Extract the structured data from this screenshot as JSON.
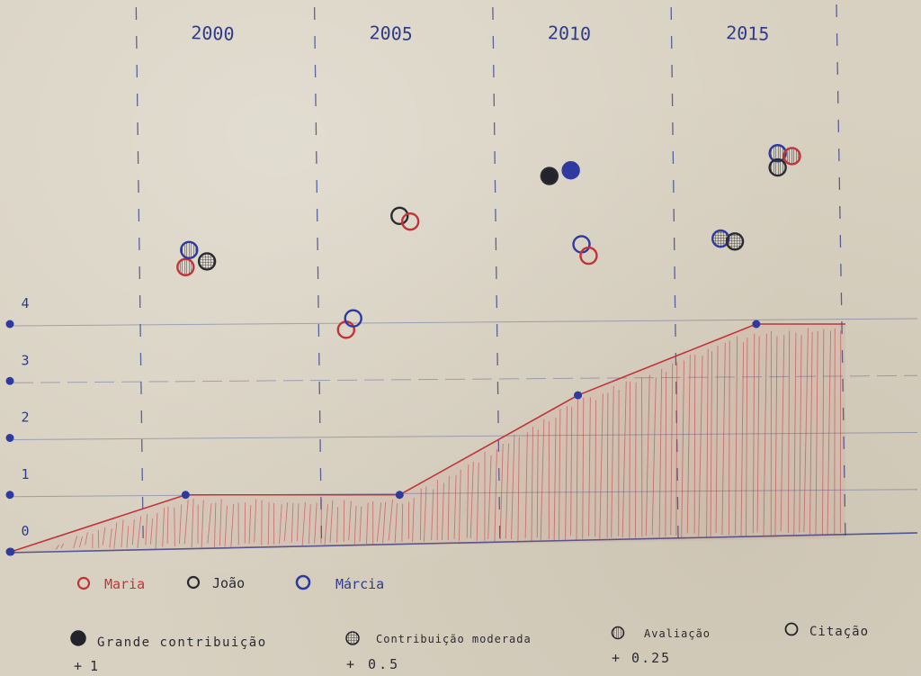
{
  "chart_data": {
    "type": "area",
    "x_ticks": [
      "2000",
      "2005",
      "2010",
      "2015"
    ],
    "y_ticks": [
      "0",
      "1",
      "2",
      "3",
      "4"
    ],
    "ylim": [
      0,
      4
    ],
    "grid": "vertical dashed lines at year ticks, horizontal faint lines at y ticks",
    "area_series": {
      "color": "#c0343a",
      "points": [
        {
          "x": 1995.1,
          "y": 0
        },
        {
          "x": 2000,
          "y": 1
        },
        {
          "x": 2006,
          "y": 1
        },
        {
          "x": 2011,
          "y": 2.75
        },
        {
          "x": 2016,
          "y": 4
        },
        {
          "x": 2018.5,
          "y": 4
        }
      ]
    },
    "contributions": [
      {
        "x": 2000.0,
        "y_level": 5.0,
        "person": "Maria",
        "type": "Avaliação"
      },
      {
        "x": 2000.1,
        "y_level": 5.3,
        "person": "Márcia",
        "type": "Avaliação"
      },
      {
        "x": 2000.6,
        "y_level": 5.1,
        "person": "João",
        "type": "Contribuição moderada"
      },
      {
        "x": 2004.5,
        "y_level": 3.9,
        "person": "Maria",
        "type": "Citação"
      },
      {
        "x": 2004.7,
        "y_level": 4.1,
        "person": "Márcia",
        "type": "Citação"
      },
      {
        "x": 2006.0,
        "y_level": 5.9,
        "person": "João",
        "type": "Citação"
      },
      {
        "x": 2006.3,
        "y_level": 5.8,
        "person": "Maria",
        "type": "Citação"
      },
      {
        "x": 2010.2,
        "y_level": 6.6,
        "person": "João",
        "type": "Grande contribuição"
      },
      {
        "x": 2010.8,
        "y_level": 6.7,
        "person": "Márcia",
        "type": "Grande contribuição"
      },
      {
        "x": 2011.1,
        "y_level": 5.4,
        "person": "Márcia",
        "type": "Citação"
      },
      {
        "x": 2011.3,
        "y_level": 5.2,
        "person": "Maria",
        "type": "Citação"
      },
      {
        "x": 2015.0,
        "y_level": 5.5,
        "person": "Márcia",
        "type": "Contribuição moderada"
      },
      {
        "x": 2015.4,
        "y_level": 5.45,
        "person": "João",
        "type": "Contribuição moderada"
      },
      {
        "x": 2016.6,
        "y_level": 7.0,
        "person": "Márcia",
        "type": "Avaliação"
      },
      {
        "x": 2017.0,
        "y_level": 6.95,
        "person": "Maria",
        "type": "Avaliação"
      },
      {
        "x": 2016.6,
        "y_level": 6.75,
        "person": "João",
        "type": "Avaliação"
      }
    ],
    "legend_people": [
      {
        "name": "Maria",
        "color": "#c0343a"
      },
      {
        "name": "João",
        "color": "#2a2a33"
      },
      {
        "name": "Márcia",
        "color": "#2f3aa0"
      }
    ],
    "legend_types": [
      {
        "name": "Grande contribuição",
        "value": "+ 1",
        "symbol": "filled"
      },
      {
        "name": "Contribuição moderada",
        "value": "+ 0.5",
        "symbol": "grid"
      },
      {
        "name": "Avaliação",
        "value": "+ 0.25",
        "symbol": "striped"
      },
      {
        "name": "Citação",
        "value": "",
        "symbol": "empty"
      }
    ]
  },
  "legend": {
    "maria": "Maria",
    "joao": "João",
    "marcia": "Márcia",
    "grande": "Grande contribuição",
    "grande_value": "+ 1",
    "moderada": "Contribuição moderada",
    "moderada_value": "+ 0.5",
    "avaliacao": "Avaliação",
    "avaliacao_value": "+ 0.25",
    "citacao": "Citação"
  },
  "colors": {
    "maria": "#c0343a",
    "joao": "#2a2a33",
    "marcia": "#2f3aa0",
    "grid": "#2f3a8a"
  }
}
